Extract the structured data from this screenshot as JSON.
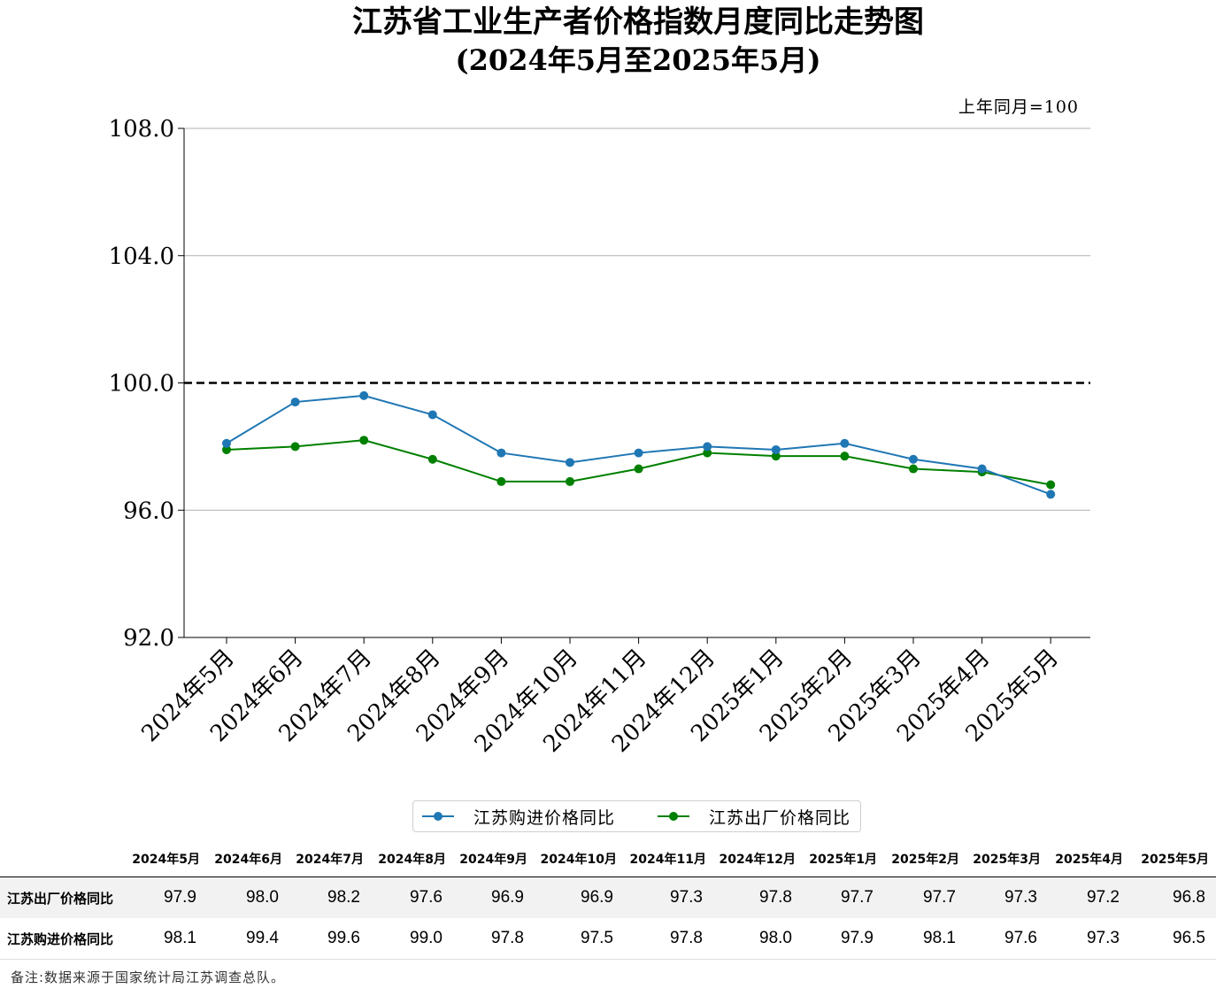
{
  "chart_data": {
    "type": "line",
    "title": "江苏省工业生产者价格指数月度同比走势图",
    "subtitle": "(2024年5月至2025年5月)",
    "unit_note": "上年同月=100",
    "categories": [
      "2024年5月",
      "2024年6月",
      "2024年7月",
      "2024年8月",
      "2024年9月",
      "2024年10月",
      "2024年11月",
      "2024年12月",
      "2025年1月",
      "2025年2月",
      "2025年3月",
      "2025年4月",
      "2025年5月"
    ],
    "series": [
      {
        "name": "江苏购进价格同比",
        "color": "#1f77b4",
        "values": [
          98.1,
          99.4,
          99.6,
          99.0,
          97.8,
          97.5,
          97.8,
          98.0,
          97.9,
          98.1,
          97.6,
          97.3,
          96.5
        ]
      },
      {
        "name": "江苏出厂价格同比",
        "color": "#008000",
        "values": [
          97.9,
          98.0,
          98.2,
          97.6,
          96.9,
          96.9,
          97.3,
          97.8,
          97.7,
          97.7,
          97.3,
          97.2,
          96.8
        ]
      }
    ],
    "ylim": [
      92.0,
      108.0
    ],
    "yticks": [
      "92.0",
      "96.0",
      "100.0",
      "104.0",
      "108.0"
    ],
    "reference_line": 100.0,
    "grid": "horizontal",
    "legend_position": "bottom-center"
  },
  "table": {
    "headers": [
      "2024年5月",
      "2024年6月",
      "2024年7月",
      "2024年8月",
      "2024年9月",
      "2024年10月",
      "2024年11月",
      "2024年12月",
      "2025年1月",
      "2025年2月",
      "2025年3月",
      "2025年4月",
      "2025年5月"
    ],
    "rows": [
      {
        "label": "江苏出厂价格同比",
        "values": [
          "97.9",
          "98.0",
          "98.2",
          "97.6",
          "96.9",
          "96.9",
          "97.3",
          "97.8",
          "97.7",
          "97.7",
          "97.3",
          "97.2",
          "96.8"
        ]
      },
      {
        "label": "江苏购进价格同比",
        "values": [
          "98.1",
          "99.4",
          "99.6",
          "99.0",
          "97.8",
          "97.5",
          "97.8",
          "98.0",
          "97.9",
          "98.1",
          "97.6",
          "97.3",
          "96.5"
        ]
      }
    ]
  },
  "footnote": "备注:数据来源于国家统计局江苏调查总队。"
}
